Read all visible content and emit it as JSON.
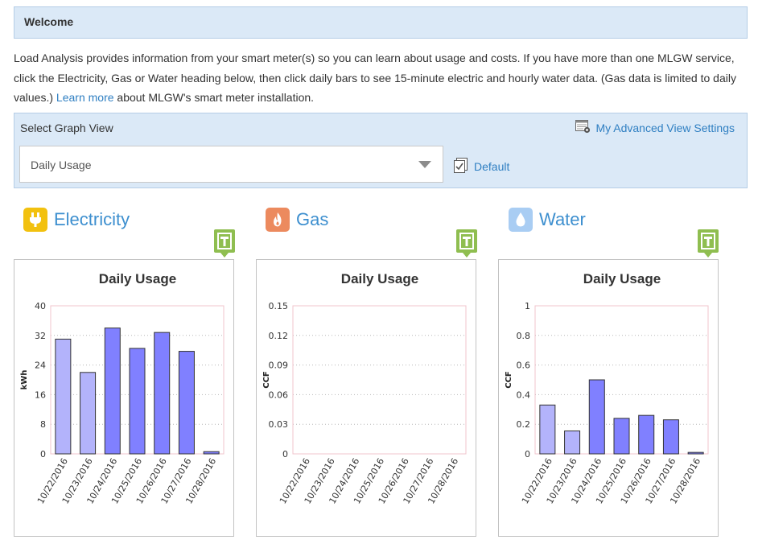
{
  "welcome": {
    "title": "Welcome"
  },
  "intro": {
    "text_before": "Load Analysis provides information from your smart meter(s) so you can learn about usage and costs. If you have more than one MLGW service, click the Electricity, Gas or Water heading below, then click daily bars to see 15-minute electric and hourly water data. (Gas data is limited to daily values.) ",
    "link": "Learn more",
    "text_after": " about MLGW's smart meter installation."
  },
  "graph_view": {
    "label": "Select Graph View",
    "advanced_settings": "My Advanced View Settings",
    "selected": "Daily Usage",
    "default_link": "Default"
  },
  "colors": {
    "accent": "#3d8fcf",
    "panel_bg": "#dbe9f7",
    "bar_dark": "#8080ff",
    "bar_light": "#b3b3fb",
    "electricity_icon": "#f2c10f",
    "gas_icon": "#ec8a5e",
    "water_icon": "#a9cdf3",
    "t_icon": "#8fbe50"
  },
  "utilities": [
    {
      "id": "electricity",
      "name": "Electricity",
      "icon": "plug-icon"
    },
    {
      "id": "gas",
      "name": "Gas",
      "icon": "flame-icon"
    },
    {
      "id": "water",
      "name": "Water",
      "icon": "water-drop-icon"
    }
  ],
  "chart_data": [
    {
      "type": "bar",
      "title": "Daily Usage",
      "ylabel": "kWh",
      "ylim": [
        0,
        40
      ],
      "yticks": [
        "0",
        "8",
        "16",
        "24",
        "32",
        "40"
      ],
      "categories": [
        "10/22/2016",
        "10/23/2016",
        "10/24/2016",
        "10/25/2016",
        "10/26/2016",
        "10/27/2016",
        "10/28/2016"
      ],
      "values": [
        31,
        22,
        34,
        28.5,
        32.8,
        27.7,
        0.6
      ],
      "bar_styles": [
        "light",
        "light",
        "dark",
        "dark",
        "dark",
        "dark",
        "dark"
      ]
    },
    {
      "type": "bar",
      "title": "Daily Usage",
      "ylabel": "CCF",
      "ylim": [
        0,
        0.15
      ],
      "yticks": [
        "0",
        "0.03",
        "0.06",
        "0.09",
        "0.12",
        "0.15"
      ],
      "categories": [
        "10/22/2016",
        "10/23/2016",
        "10/24/2016",
        "10/25/2016",
        "10/26/2016",
        "10/27/2016",
        "10/28/2016"
      ],
      "values": [
        0,
        0,
        0,
        0,
        0,
        0,
        0
      ],
      "bar_styles": [
        "light",
        "light",
        "dark",
        "dark",
        "dark",
        "dark",
        "dark"
      ]
    },
    {
      "type": "bar",
      "title": "Daily Usage",
      "ylabel": "CCF",
      "ylim": [
        0,
        1
      ],
      "yticks": [
        "0",
        "0.2",
        "0.4",
        "0.6",
        "0.8",
        "1"
      ],
      "categories": [
        "10/22/2016",
        "10/23/2016",
        "10/24/2016",
        "10/25/2016",
        "10/26/2016",
        "10/27/2016",
        "10/28/2016"
      ],
      "values": [
        0.33,
        0.155,
        0.5,
        0.24,
        0.26,
        0.23,
        0.01
      ],
      "bar_styles": [
        "light",
        "light",
        "dark",
        "dark",
        "dark",
        "dark",
        "dark"
      ]
    }
  ]
}
